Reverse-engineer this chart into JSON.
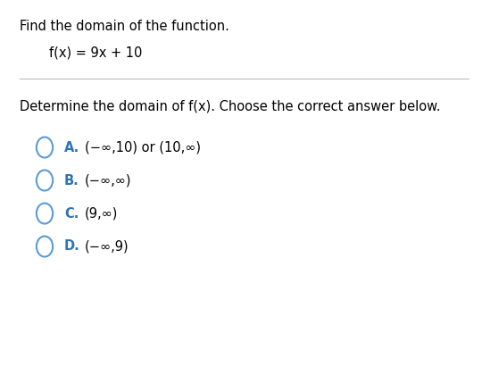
{
  "title_text": "Find the domain of the function.",
  "function_text": "f(x) = 9x + 10",
  "question_text": "Determine the domain of f(x). Choose the correct answer below.",
  "options": [
    {
      "label": "A.",
      "text": "(−∞,10) or (10,∞)"
    },
    {
      "label": "B.",
      "text": "(−∞,∞)"
    },
    {
      "label": "C.",
      "text": "(9,∞)"
    },
    {
      "label": "D.",
      "text": "(−∞,9)"
    }
  ],
  "background_color": "#ffffff",
  "text_color": "#000000",
  "circle_color": "#5b9bd5",
  "label_color": "#2e74b5",
  "title_fontsize": 10.5,
  "function_fontsize": 10.5,
  "question_fontsize": 10.5,
  "option_fontsize": 10.5,
  "separator_color": "#bbbbbb"
}
